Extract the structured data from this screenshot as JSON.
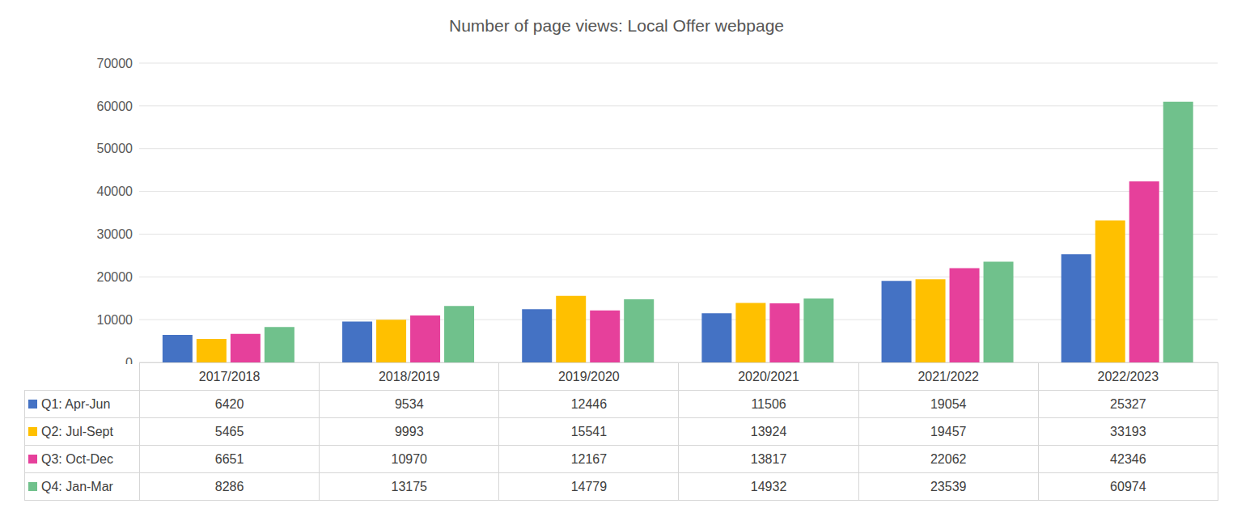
{
  "chart_data": {
    "type": "bar",
    "title": "Number of page views: Local Offer webpage",
    "categories": [
      "2017/2018",
      "2018/2019",
      "2019/2020",
      "2020/2021",
      "2021/2022",
      "2022/2023"
    ],
    "series": [
      {
        "name": "Q1: Apr-Jun",
        "color": "#4472C4",
        "values": [
          6420,
          9534,
          12446,
          11506,
          19054,
          25327
        ]
      },
      {
        "name": "Q2: Jul-Sept",
        "color": "#FFC000",
        "values": [
          5465,
          9993,
          15541,
          13924,
          19457,
          33193
        ]
      },
      {
        "name": "Q3: Oct-Dec",
        "color": "#E6409B",
        "values": [
          6651,
          10970,
          12167,
          13817,
          22062,
          42346
        ]
      },
      {
        "name": "Q4: Jan-Mar",
        "color": "#70C18C",
        "values": [
          8286,
          13175,
          14779,
          14932,
          23539,
          60974
        ]
      }
    ],
    "ylim": [
      0,
      70000
    ],
    "yticks": [
      0,
      10000,
      20000,
      30000,
      40000,
      50000,
      60000,
      70000
    ],
    "grid": true
  }
}
